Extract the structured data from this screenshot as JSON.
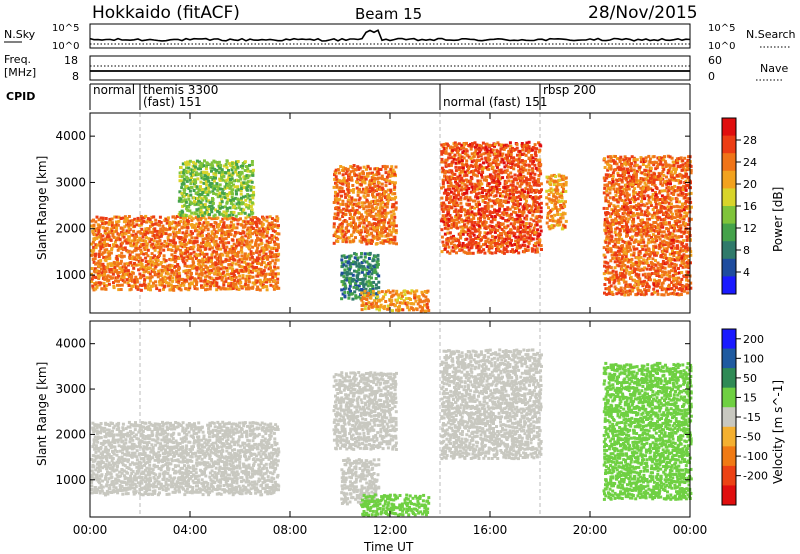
{
  "header": {
    "station": "Hokkaido (fitACF)",
    "beam": "Beam 15",
    "date": "28/Nov/2015"
  },
  "strip": {
    "nsky_label": "N.Sky",
    "nsearch_label": "N.Search",
    "freq_label_1": "Freq.",
    "freq_label_2": "[MHz]",
    "nave_label": "Nave",
    "cpid_label": "CPID",
    "noise_ticks": [
      "10^5",
      "10^0"
    ],
    "freq_ticks": [
      "18",
      "8"
    ],
    "nave_ticks": [
      "60",
      "0"
    ],
    "cpid_segments": [
      {
        "start_h": 0.0,
        "end_h": 2.0,
        "lines": [
          "normal"
        ]
      },
      {
        "start_h": 2.0,
        "end_h": 14.0,
        "lines": [
          "themis 3300",
          "(fast) 151"
        ]
      },
      {
        "start_h": 14.0,
        "end_h": 18.0,
        "lines": [
          "",
          "normal (fast) 151"
        ]
      },
      {
        "start_h": 18.0,
        "end_h": 24.0,
        "lines": [
          "rbsp 200",
          ""
        ]
      }
    ]
  },
  "chart_data": [
    {
      "type": "heatmap",
      "panel": "power",
      "ylabel": "Slant Range [km]",
      "colorbar_label": "Power [dB]",
      "ylim": [
        180,
        4500
      ],
      "xlim_hours": [
        0,
        24
      ],
      "yticks": [
        1000,
        2000,
        3000,
        4000
      ],
      "colorbar_ticks": [
        4,
        8,
        12,
        16,
        20,
        24,
        28
      ],
      "colorbar_range": [
        0,
        32
      ],
      "colors": [
        "#1a1aff",
        "#1e4c9e",
        "#2f7a6a",
        "#44a24a",
        "#7fc43a",
        "#d8d42a",
        "#f2a21e",
        "#f07418",
        "#ec3d14",
        "#e00e0e"
      ],
      "regions": [
        {
          "t0": 0.0,
          "t1": 7.5,
          "r0": 700,
          "r1": 2300,
          "v": 24
        },
        {
          "t0": 3.5,
          "t1": 6.5,
          "r0": 2300,
          "r1": 3500,
          "v": 14
        },
        {
          "t0": 9.7,
          "t1": 12.2,
          "r0": 1700,
          "r1": 3400,
          "v": 24
        },
        {
          "t0": 10.0,
          "t1": 11.5,
          "r0": 500,
          "r1": 1500,
          "v": 9
        },
        {
          "t0": 10.8,
          "t1": 13.5,
          "r0": 250,
          "r1": 700,
          "v": 22
        },
        {
          "t0": 14.0,
          "t1": 18.0,
          "r0": 1500,
          "r1": 3900,
          "v": 26
        },
        {
          "t0": 18.2,
          "t1": 19.0,
          "r0": 2000,
          "r1": 3200,
          "v": 22
        },
        {
          "t0": 20.5,
          "t1": 24.0,
          "r0": 600,
          "r1": 3600,
          "v": 25
        }
      ]
    },
    {
      "type": "heatmap",
      "panel": "velocity",
      "xlabel": "Time UT",
      "ylabel": "Slant Range [km]",
      "colorbar_label": "Velocity [m s^-1]",
      "ylim": [
        180,
        4500
      ],
      "xlim_hours": [
        0,
        24
      ],
      "xticks": [
        "00:00",
        "04:00",
        "08:00",
        "12:00",
        "16:00",
        "20:00",
        "00:00"
      ],
      "yticks": [
        1000,
        2000,
        3000,
        4000
      ],
      "colorbar_ticks": [
        200,
        100,
        50,
        15,
        -15,
        -50,
        -100,
        -200
      ],
      "colors": [
        "#1a1aff",
        "#1f5aa0",
        "#2f8a55",
        "#6fd042",
        "#c8c8c0",
        "#f4b030",
        "#f07a14",
        "#ec4214",
        "#e00e0e"
      ],
      "regions": [
        {
          "t0": 0.0,
          "t1": 7.5,
          "r0": 700,
          "r1": 2300,
          "v": 0
        },
        {
          "t0": 9.7,
          "t1": 12.2,
          "r0": 1700,
          "r1": 3400,
          "v": 0
        },
        {
          "t0": 10.0,
          "t1": 11.5,
          "r0": 500,
          "r1": 1500,
          "v": 0
        },
        {
          "t0": 10.8,
          "t1": 13.5,
          "r0": 250,
          "r1": 700,
          "v": 40
        },
        {
          "t0": 14.0,
          "t1": 18.0,
          "r0": 1500,
          "r1": 3900,
          "v": 0
        },
        {
          "t0": 20.5,
          "t1": 24.0,
          "r0": 600,
          "r1": 3600,
          "v": 30
        }
      ]
    }
  ],
  "colorbar_power_ticks_text": [
    "28",
    "24",
    "20",
    "16",
    "12",
    "8",
    "4"
  ],
  "colorbar_velocity_ticks_text": [
    "200",
    "100",
    "50",
    "15",
    "-15",
    "-50",
    "-100",
    "-200"
  ],
  "x_tick_labels": [
    "00:00",
    "04:00",
    "08:00",
    "12:00",
    "16:00",
    "20:00",
    "00:00"
  ],
  "y_tick_labels": [
    "1000",
    "2000",
    "3000",
    "4000"
  ]
}
